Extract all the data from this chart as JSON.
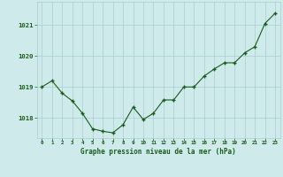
{
  "x": [
    0,
    1,
    2,
    3,
    4,
    5,
    6,
    7,
    8,
    9,
    10,
    11,
    12,
    13,
    14,
    15,
    16,
    17,
    18,
    19,
    20,
    21,
    22,
    23
  ],
  "y": [
    1019.0,
    1019.2,
    1018.8,
    1018.55,
    1018.15,
    1017.65,
    1017.57,
    1017.52,
    1017.78,
    1018.35,
    1017.95,
    1018.15,
    1018.58,
    1018.58,
    1019.0,
    1019.0,
    1019.35,
    1019.58,
    1019.78,
    1019.78,
    1020.1,
    1020.3,
    1021.05,
    1021.38
  ],
  "bg_color": "#ceeaea",
  "line_color": "#1a5c1a",
  "marker_color": "#1a5c1a",
  "grid_color": "#aacece",
  "xlabel": "Graphe pression niveau de la mer (hPa)",
  "xlabel_color": "#1a5c1a",
  "tick_color": "#1a5c1a",
  "ylim": [
    1017.35,
    1021.75
  ],
  "yticks": [
    1018,
    1019,
    1020,
    1021
  ],
  "xticks": [
    0,
    1,
    2,
    3,
    4,
    5,
    6,
    7,
    8,
    9,
    10,
    11,
    12,
    13,
    14,
    15,
    16,
    17,
    18,
    19,
    20,
    21,
    22,
    23
  ],
  "fig_bg_color": "#ceeaea"
}
